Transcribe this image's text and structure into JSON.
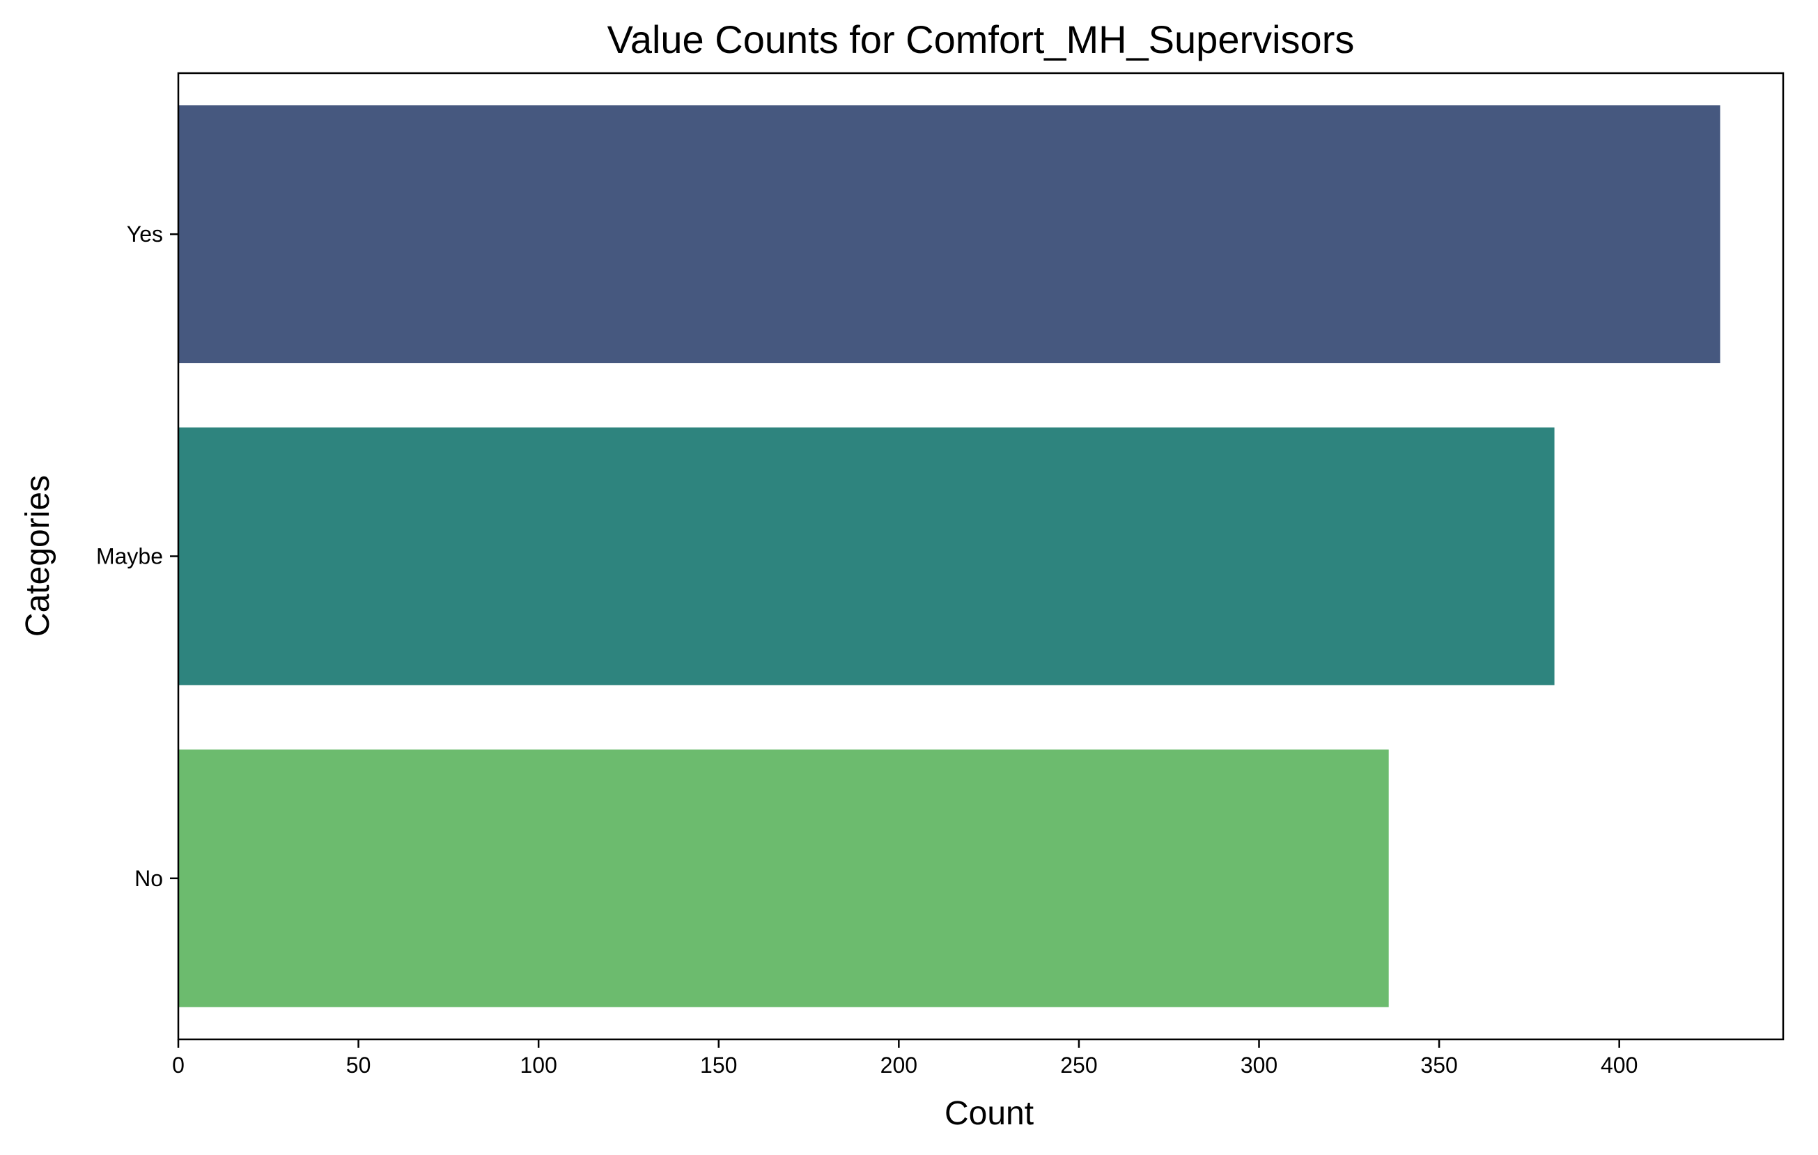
{
  "chart_data": {
    "type": "bar",
    "orientation": "horizontal",
    "title": "Value Counts for Comfort_MH_Supervisors",
    "xlabel": "Count",
    "ylabel": "Categories",
    "categories": [
      "Yes",
      "Maybe",
      "No"
    ],
    "values": [
      428,
      382,
      336
    ],
    "colors": [
      "#46587f",
      "#2e847e",
      "#6cbb6e"
    ],
    "xlim": [
      0,
      445.5
    ],
    "xticks": [
      0,
      50,
      100,
      150,
      200,
      250,
      300,
      350,
      400
    ],
    "grid": false,
    "legend": "none"
  }
}
